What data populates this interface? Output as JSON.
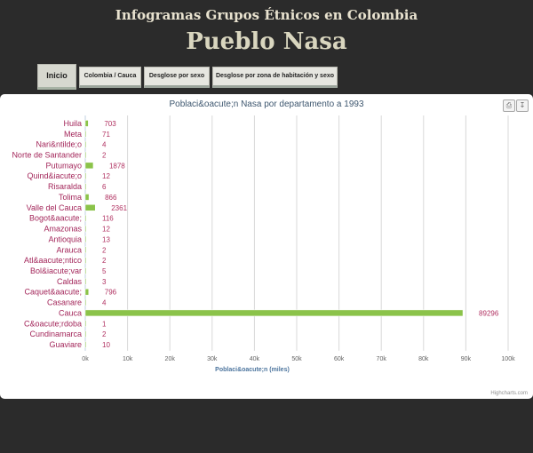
{
  "header": {
    "site_title": "Infogramas Grupos Étnicos en Colombia",
    "page_title": "Pueblo Nasa"
  },
  "tabs": [
    {
      "label": "Inicio"
    },
    {
      "label": "Colombia / Cauca"
    },
    {
      "label": "Desglose por sexo"
    },
    {
      "label": "Desglose por zona de habitación y sexo"
    }
  ],
  "export_buttons": {
    "print_icon": "printer-icon",
    "download_icon": "download-icon"
  },
  "credits": "Highcharts.com",
  "colors": {
    "bar": "#8bc34a",
    "category_label": "#a3265a",
    "value_label": "#b03060",
    "axis_title": "#4d759e"
  },
  "chart_data": {
    "type": "bar",
    "orientation": "horizontal",
    "title": "Poblaci&oacute;n Nasa por departamento a 1993",
    "xlabel": "Poblaci&oacute;n (miles)",
    "categories": [
      "Huila",
      "Meta",
      "Nari&ntilde;o",
      "Norte de Santander",
      "Putumayo",
      "Quind&iacute;o",
      "Risaralda",
      "Tolima",
      "Valle del Cauca",
      "Bogot&aacute;",
      "Amazonas",
      "Antioquia",
      "Arauca",
      "Atl&aacute;ntico",
      "Bol&iacute;var",
      "Caldas",
      "Caquet&aacute;",
      "Casanare",
      "Cauca",
      "C&oacute;rdoba",
      "Cundinamarca",
      "Guaviare"
    ],
    "values": [
      703,
      71,
      4,
      2,
      1878,
      12,
      6,
      866,
      2361,
      116,
      12,
      13,
      2,
      2,
      5,
      3,
      796,
      4,
      89296,
      1,
      2,
      10
    ],
    "ticks": [
      "0k",
      "10k",
      "20k",
      "30k",
      "40k",
      "50k",
      "60k",
      "70k",
      "80k",
      "90k",
      "100k"
    ],
    "xlim": [
      0,
      100000
    ],
    "grid": true,
    "legend": false
  }
}
